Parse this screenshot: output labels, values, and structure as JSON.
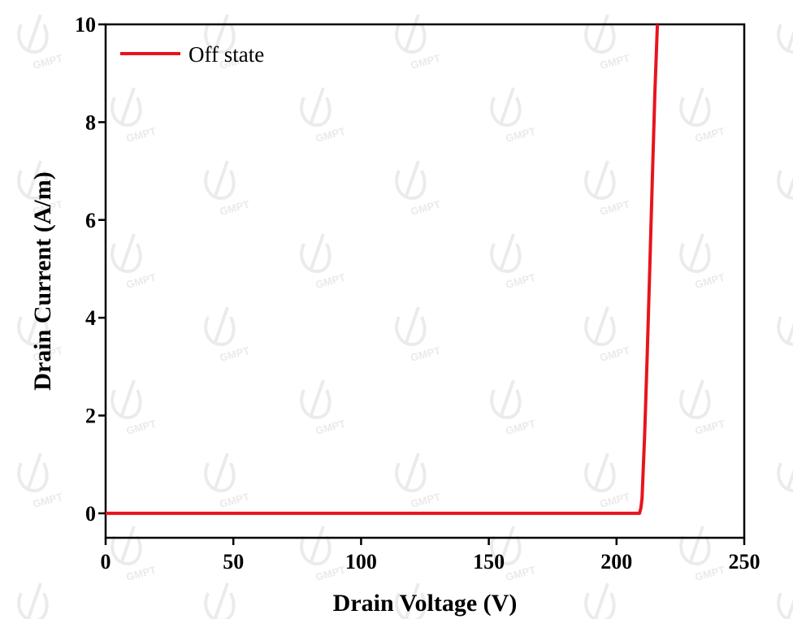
{
  "chart_data": {
    "type": "line",
    "xlabel": "Drain Voltage (V)",
    "ylabel": "Drain Current (A/m)",
    "xlim": [
      0,
      250
    ],
    "ylim": [
      -0.5,
      10
    ],
    "xticks": [
      0,
      50,
      100,
      150,
      200,
      250
    ],
    "yticks": [
      0,
      2,
      4,
      6,
      8,
      10
    ],
    "grid": false,
    "legend_position": "top-left",
    "series": [
      {
        "name": "Off state",
        "color": "#e8141c",
        "x": [
          0,
          50,
          100,
          150,
          200,
          209,
          209.5,
          210,
          211,
          212,
          213,
          214,
          215,
          216
        ],
        "y": [
          0,
          0,
          0,
          0,
          0,
          0,
          0.1,
          0.3,
          1.6,
          3.2,
          5.0,
          6.8,
          8.6,
          10.0
        ]
      }
    ]
  },
  "watermark": {
    "text": "GMPT",
    "icon": "gmpt-logo-icon"
  }
}
